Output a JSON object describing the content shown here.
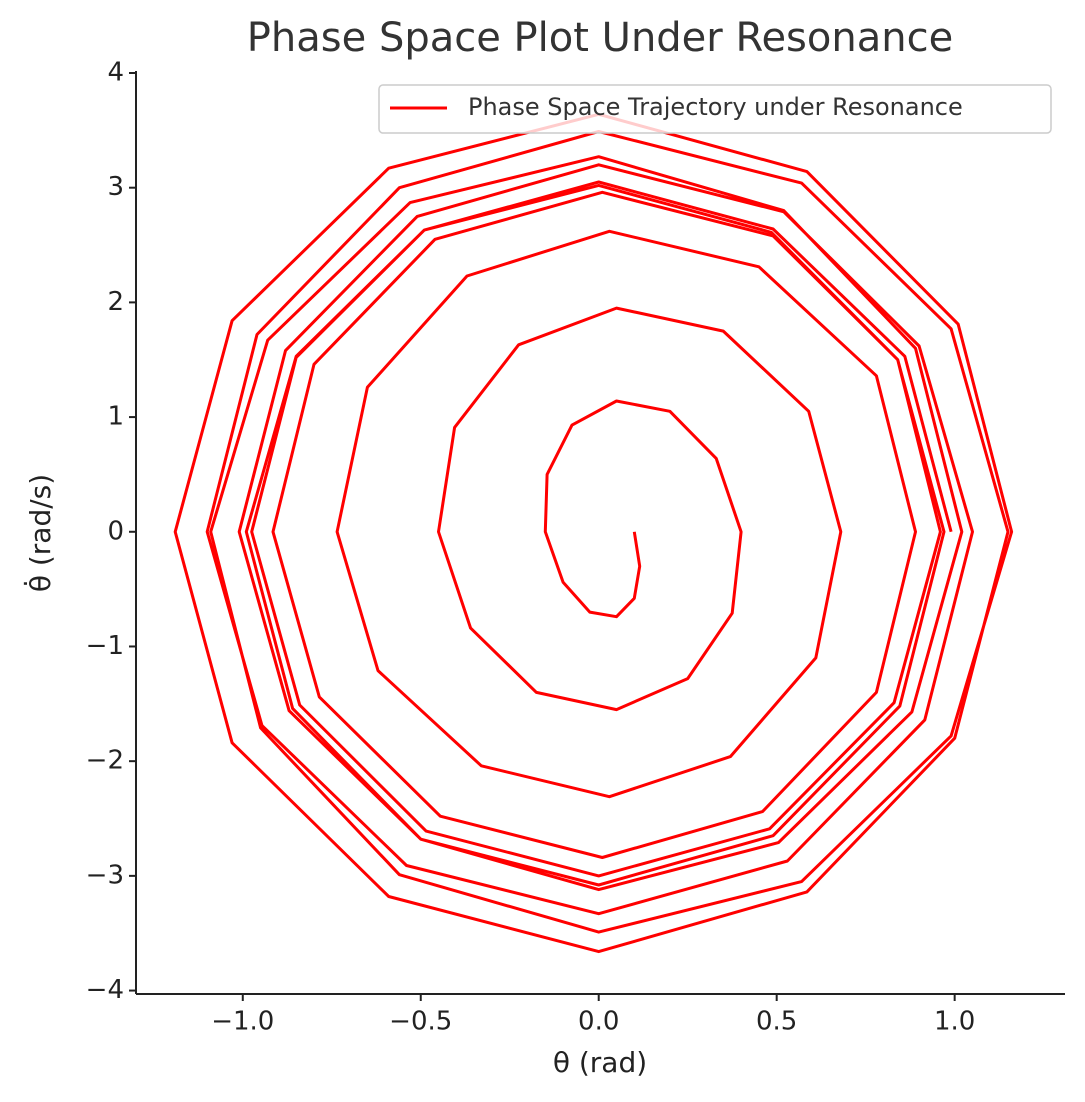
{
  "chart_data": {
    "type": "line",
    "title": "Phase Space Plot Under Resonance",
    "xlabel": "θ (rad)",
    "ylabel": "θ̇ (rad/s)",
    "legend": "upper right",
    "xlim": [
      -1.3,
      1.31
    ],
    "ylim": [
      -4.03,
      4.0
    ],
    "xticks": [
      {
        "value": -1.0,
        "label": "−1.0"
      },
      {
        "value": -0.5,
        "label": "−0.5"
      },
      {
        "value": 0.0,
        "label": "0.0"
      },
      {
        "value": 0.5,
        "label": "0.5"
      },
      {
        "value": 1.0,
        "label": "1.0"
      }
    ],
    "yticks": [
      {
        "value": -4,
        "label": "−4"
      },
      {
        "value": -3,
        "label": "−3"
      },
      {
        "value": -2,
        "label": "−2"
      },
      {
        "value": -1,
        "label": "−1"
      },
      0,
      1,
      2,
      3,
      4
    ],
    "x": [
      0.1,
      0.115,
      0.1,
      0.05,
      -0.025,
      -0.1,
      -0.15,
      -0.145,
      -0.075,
      0.05,
      0.2,
      0.33,
      0.4,
      0.375,
      0.25,
      0.05,
      -0.175,
      -0.36,
      -0.45,
      -0.405,
      -0.225,
      0.05,
      0.35,
      0.59,
      0.68,
      0.61,
      0.37,
      0.03,
      -0.33,
      -0.62,
      -0.735,
      -0.65,
      -0.37,
      0.03,
      0.45,
      0.78,
      0.89,
      0.78,
      0.46,
      0.01,
      -0.445,
      -0.785,
      -0.915,
      -0.8,
      -0.46,
      0.01,
      0.49,
      0.84,
      0.97,
      0.846,
      0.49,
      0,
      -0.5,
      -0.87,
      -1.01,
      -0.88,
      -0.51,
      0,
      0.52,
      0.9,
      1.05,
      0.916,
      0.53,
      0,
      -0.54,
      -0.946,
      -1.1,
      -0.96,
      -0.56,
      0,
      0.57,
      0.99,
      1.15,
      1.0,
      0.585,
      0,
      -0.59,
      -1.03,
      -1.19,
      -1.03,
      -0.59,
      0,
      0.585,
      1.01,
      1.16,
      0.99,
      0.57,
      0,
      -0.56,
      -0.95,
      -1.09,
      -0.93,
      -0.53,
      0,
      0.52,
      0.89,
      1.02,
      0.88,
      0.505,
      0,
      -0.5,
      -0.86,
      -0.99,
      -0.85,
      -0.49,
      0,
      0.485,
      0.84,
      0.96,
      0.83,
      0.48,
      0,
      -0.485,
      -0.84,
      -0.975,
      -0.85,
      -0.49,
      0,
      0.49,
      0.86,
      0.99
    ],
    "series": [
      {
        "name": "Phase Space Trajectory under Resonance",
        "color": "#ff0000",
        "values": [
          0,
          -0.3,
          -0.58,
          -0.74,
          -0.7,
          -0.44,
          0,
          0.5,
          0.93,
          1.14,
          1.05,
          0.64,
          0,
          -0.71,
          -1.28,
          -1.55,
          -1.4,
          -0.84,
          0,
          0.91,
          1.63,
          1.95,
          1.75,
          1.05,
          0,
          -1.1,
          -1.96,
          -2.31,
          -2.04,
          -1.21,
          0,
          1.26,
          2.23,
          2.62,
          2.31,
          1.36,
          0,
          -1.4,
          -2.44,
          -2.84,
          -2.48,
          -1.44,
          0,
          1.46,
          2.55,
          2.96,
          2.58,
          1.5,
          0,
          -1.52,
          -2.65,
          -3.08,
          -2.68,
          -1.56,
          0,
          1.58,
          2.75,
          3.2,
          2.79,
          1.62,
          0,
          -1.64,
          -2.87,
          -3.33,
          -2.91,
          -1.69,
          0,
          1.72,
          3.0,
          3.49,
          3.04,
          1.77,
          0,
          -1.8,
          -3.14,
          -3.66,
          -3.18,
          -1.84,
          0,
          1.84,
          3.17,
          3.64,
          3.14,
          1.81,
          0,
          -1.78,
          -3.05,
          -3.49,
          -2.99,
          -1.71,
          0,
          1.67,
          2.87,
          3.27,
          2.8,
          1.6,
          0,
          -1.57,
          -2.71,
          -3.12,
          -2.68,
          -1.54,
          0,
          1.53,
          2.63,
          3.02,
          2.61,
          1.5,
          0,
          -1.49,
          -2.59,
          -3.0,
          -2.61,
          -1.51,
          0,
          1.52,
          2.63,
          3.05,
          2.64,
          1.53,
          0
        ]
      }
    ]
  }
}
